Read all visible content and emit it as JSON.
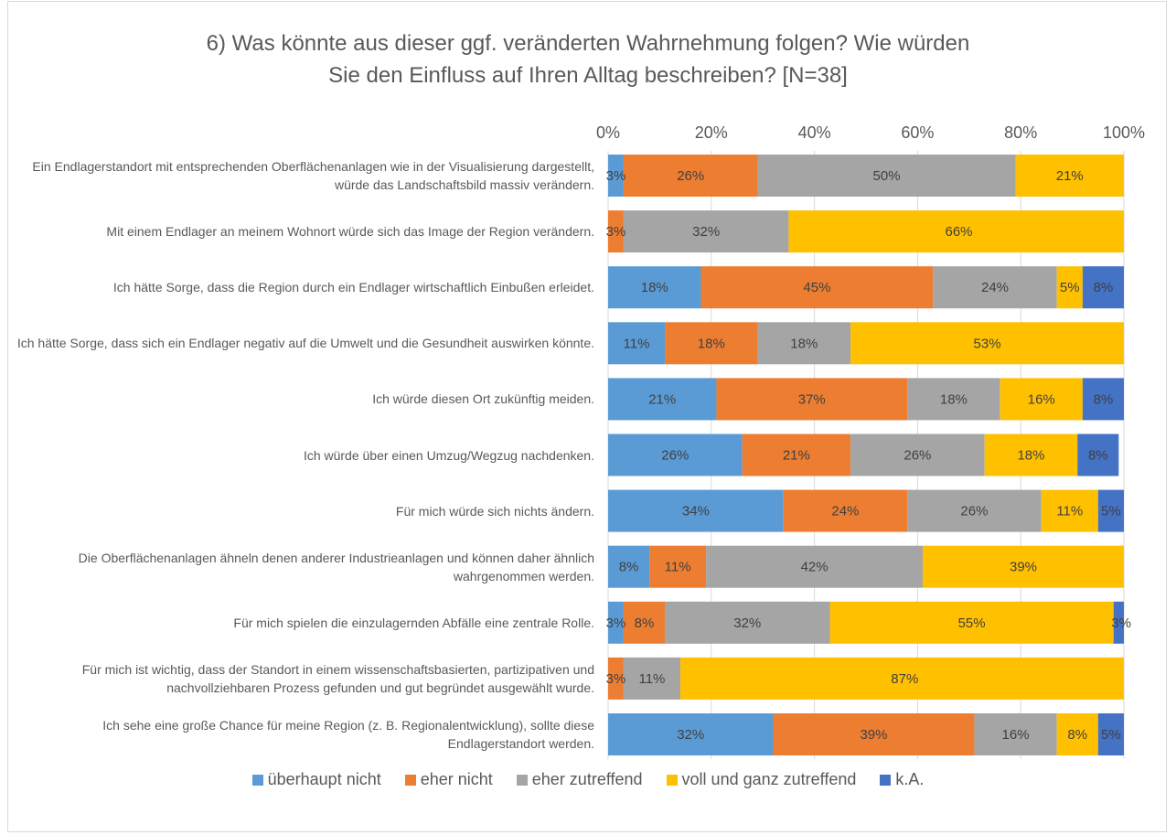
{
  "chart_data": {
    "type": "stacked-barh",
    "title": "6) Was könnte aus dieser ggf. veränderten Wahrnehmung folgen? Wie würden Sie den Einfluss auf Ihren Alltag beschreiben? [N=38]",
    "categories": [
      "Ein Endlagerstandort mit entsprechenden Oberflächenanlagen wie in der Visualisierung dargestellt, würde das Landschaftsbild massiv verändern.",
      "Mit einem Endlager an meinem Wohnort würde sich das Image der Region verändern.",
      "Ich hätte Sorge, dass die Region durch ein Endlager wirtschaftlich Einbußen erleidet.",
      "Ich hätte Sorge, dass sich ein Endlager negativ auf die Umwelt und die Gesundheit auswirken könnte.",
      "Ich würde diesen Ort zukünftig meiden.",
      "Ich würde über einen Umzug/Wegzug nachdenken.",
      "Für mich würde sich nichts ändern.",
      "Die Oberflächenanlagen ähneln denen anderer Industrieanlagen und können daher ähnlich wahrgenommen werden.",
      "Für mich spielen die einzulagernden Abfälle eine zentrale Rolle.",
      "Für mich ist wichtig, dass der Standort in einem wissenschaftsbasierten, partizipativen und nachvollziehbaren Prozess gefunden und gut begründet ausgewählt wurde.",
      "Ich sehe eine große Chance für meine Region (z. B. Regionalentwicklung), sollte diese Endlagerstandort werden."
    ],
    "series": [
      {
        "name": "überhaupt nicht",
        "color": "#5b9bd5",
        "values": [
          3,
          null,
          18,
          11,
          21,
          26,
          34,
          8,
          3,
          null,
          32
        ],
        "value_labels": [
          "3%",
          null,
          "18%",
          "11%",
          "21%",
          "26%",
          "34%",
          "8%",
          "3%",
          null,
          "32%"
        ]
      },
      {
        "name": "eher nicht",
        "color": "#ed7d31",
        "values": [
          26,
          3,
          45,
          18,
          37,
          21,
          24,
          11,
          8,
          3,
          39
        ],
        "value_labels": [
          "26%",
          "3%",
          "45%",
          "18%",
          "37%",
          "21%",
          "24%",
          "11%",
          "8%",
          "3%",
          "39%"
        ]
      },
      {
        "name": "eher zutreffend",
        "color": "#a5a5a5",
        "values": [
          50,
          32,
          24,
          18,
          18,
          26,
          26,
          42,
          32,
          11,
          16
        ],
        "value_labels": [
          "50%",
          "32%",
          "24%",
          "18%",
          "18%",
          "26%",
          "26%",
          "42%",
          "32%",
          "11%",
          "16%"
        ]
      },
      {
        "name": "voll und ganz zutreffend",
        "color": "#ffc000",
        "values": [
          21,
          66,
          5,
          53,
          16,
          18,
          11,
          39,
          55,
          87,
          8
        ],
        "value_labels": [
          "21%",
          "66%",
          "5%",
          "53%",
          "16%",
          "18%",
          "11%",
          "39%",
          "55%",
          "87%",
          "8%"
        ]
      },
      {
        "name": "k.A.",
        "color": "#4472c4",
        "values": [
          null,
          null,
          8,
          null,
          8,
          8,
          5,
          null,
          3,
          null,
          5
        ],
        "value_labels": [
          null,
          null,
          "8%",
          null,
          "8%",
          "8%",
          "5%",
          null,
          "3%",
          null,
          "5%"
        ]
      }
    ],
    "xlim": [
      0,
      100
    ],
    "xticks": [
      {
        "value": 0,
        "label": "0%"
      },
      {
        "value": 20,
        "label": "20%"
      },
      {
        "value": 40,
        "label": "40%"
      },
      {
        "value": 60,
        "label": "60%"
      },
      {
        "value": 80,
        "label": "80%"
      },
      {
        "value": 100,
        "label": "100%"
      }
    ],
    "grid": true,
    "legend": "bottom"
  }
}
